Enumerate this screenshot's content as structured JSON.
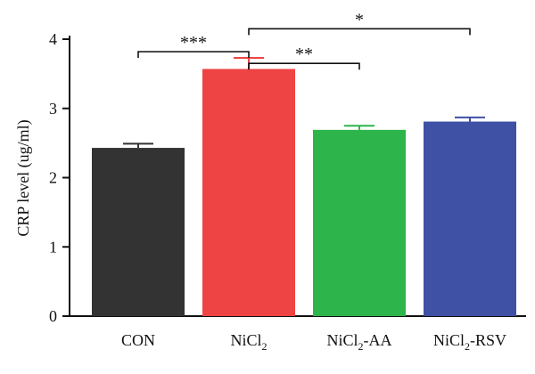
{
  "chart_data": {
    "type": "bar",
    "ylabel": "CRP level (ug/ml)",
    "xlabel": "",
    "ylim": [
      0,
      4
    ],
    "yticks": [
      0,
      1,
      2,
      3,
      4
    ],
    "categories": [
      {
        "base": "CON",
        "sub": "",
        "suffix": ""
      },
      {
        "base": "NiCl",
        "sub": "2",
        "suffix": ""
      },
      {
        "base": "NiCl",
        "sub": "2",
        "suffix": "-AA"
      },
      {
        "base": "NiCl",
        "sub": "2",
        "suffix": "-RSV"
      }
    ],
    "values": [
      2.43,
      3.57,
      2.69,
      2.81
    ],
    "errors": [
      0.06,
      0.16,
      0.06,
      0.06
    ],
    "colors": [
      "#333333",
      "#ef4444",
      "#2db44b",
      "#3f51a5"
    ],
    "significance": [
      {
        "from": 0,
        "to": 1,
        "label": "***",
        "level": 3.82
      },
      {
        "from": 1,
        "to": 2,
        "label": "**",
        "level": 3.65
      },
      {
        "from": 1,
        "to": 3,
        "label": "*",
        "level": 4.15
      }
    ]
  }
}
